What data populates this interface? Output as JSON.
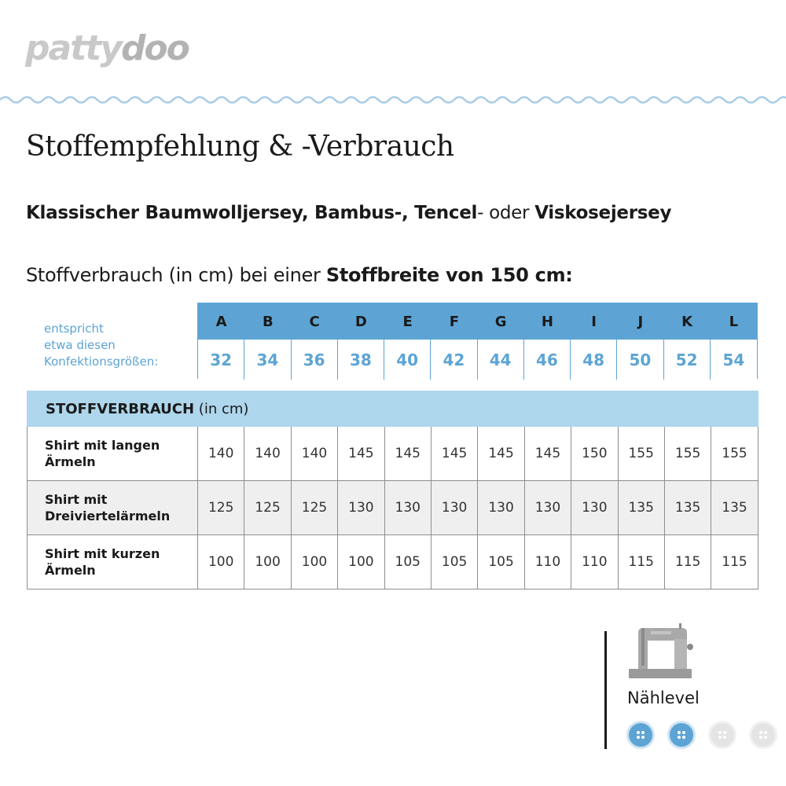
{
  "brand": {
    "part1": "patty",
    "part2": "doo"
  },
  "title": "Stoffempfehlung & -Verbrauch",
  "recommendation": {
    "f1": "Klassischer Baumwolljersey, Bambus-, ",
    "f2": "Tencel",
    "sep": "- oder ",
    "f3": "Viskosejersey"
  },
  "usage_line": {
    "text": "Stoffverbrauch (in cm) bei einer ",
    "bold": "Stoffbreite von 150 cm:"
  },
  "size_label": {
    "l1": "entspricht",
    "l2": "etwa diesen",
    "l3": "Konfektionsgrößen:"
  },
  "sizes": {
    "letters": [
      "A",
      "B",
      "C",
      "D",
      "E",
      "F",
      "G",
      "H",
      "I",
      "J",
      "K",
      "L"
    ],
    "numbers": [
      "32",
      "34",
      "36",
      "38",
      "40",
      "42",
      "44",
      "46",
      "48",
      "50",
      "52",
      "54"
    ]
  },
  "table": {
    "header_bold": "STOFFVERBRAUCH",
    "header_unit": " (in cm)",
    "rows": [
      {
        "l1": "Shirt mit langen",
        "l2": "Ärmeln",
        "values": [
          "140",
          "140",
          "140",
          "145",
          "145",
          "145",
          "145",
          "145",
          "150",
          "155",
          "155",
          "155"
        ]
      },
      {
        "l1": "Shirt mit",
        "l2": "Dreiviertelärmeln",
        "values": [
          "125",
          "125",
          "125",
          "130",
          "130",
          "130",
          "130",
          "130",
          "130",
          "135",
          "135",
          "135"
        ]
      },
      {
        "l1": "Shirt mit kurzen",
        "l2": "Ärmeln",
        "values": [
          "100",
          "100",
          "100",
          "100",
          "105",
          "105",
          "105",
          "110",
          "110",
          "115",
          "115",
          "115"
        ]
      }
    ]
  },
  "level": {
    "label": "Nählevel",
    "value": 2,
    "max": 4,
    "icon": "sewing-machine-icon"
  },
  "colors": {
    "accent": "#5da4d4",
    "table_header": "#aed6ec",
    "brand_grey": "#bdbdbd"
  }
}
